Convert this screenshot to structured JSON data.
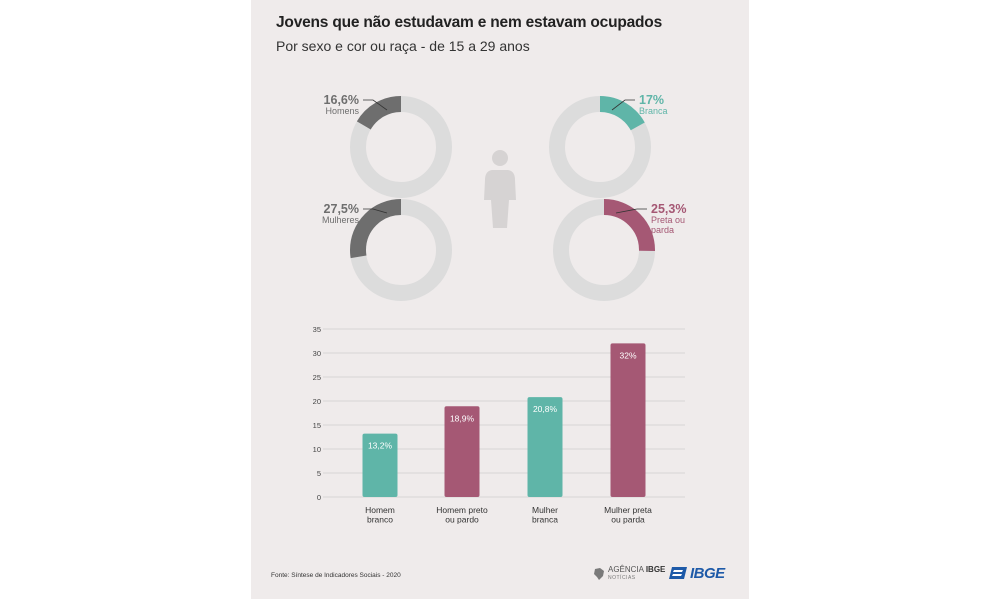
{
  "title": "Jovens que não estudavam e nem estavam ocupados",
  "subtitle": "Por sexo e cor ou raça - de 15 a 29 anos",
  "colors": {
    "gray": "#6e6e6e",
    "teal": "#5fb5a8",
    "plum": "#a55874",
    "ring": "#dcdcdc",
    "panel": "#efebeb"
  },
  "donuts": [
    {
      "id": "homens",
      "value_label": "16,6%",
      "label_lines": [
        "Homens"
      ],
      "fraction": 0.166,
      "color_key": "gray"
    },
    {
      "id": "branca",
      "value_label": "17%",
      "label_lines": [
        "Branca"
      ],
      "fraction": 0.17,
      "color_key": "teal"
    },
    {
      "id": "mulheres",
      "value_label": "27,5%",
      "label_lines": [
        "Mulheres"
      ],
      "fraction": 0.275,
      "color_key": "gray"
    },
    {
      "id": "preta-parda",
      "value_label": "25,3%",
      "label_lines": [
        "Preta ou",
        "parda"
      ],
      "fraction": 0.253,
      "color_key": "plum"
    }
  ],
  "center_icon": "person-icon",
  "chart_data": {
    "type": "bar",
    "categories": [
      [
        "Homem",
        "branco"
      ],
      [
        "Homem preto",
        "ou pardo"
      ],
      [
        "Mulher",
        "branca"
      ],
      [
        "Mulher preta",
        "ou parda"
      ]
    ],
    "values": [
      13.2,
      18.9,
      20.8,
      32
    ],
    "value_labels": [
      "13,2%",
      "18,9%",
      "20,8%",
      "32%"
    ],
    "bar_colors": [
      "#5fb5a8",
      "#a55874",
      "#5fb5a8",
      "#a55874"
    ],
    "ylim": [
      0,
      35
    ],
    "yticks": [
      "0",
      "5",
      "10",
      "15",
      "20",
      "25",
      "30",
      "35"
    ],
    "grid": true,
    "title": "",
    "xlabel": "",
    "ylabel": ""
  },
  "source": "Fonte: Síntese de Indicadores Sociais - 2020",
  "logos": {
    "agencia_main": "AGÊNCIA",
    "agencia_bold": "IBGE",
    "agencia_sub": "NOTÍCIAS",
    "ibge": "IBGE"
  }
}
